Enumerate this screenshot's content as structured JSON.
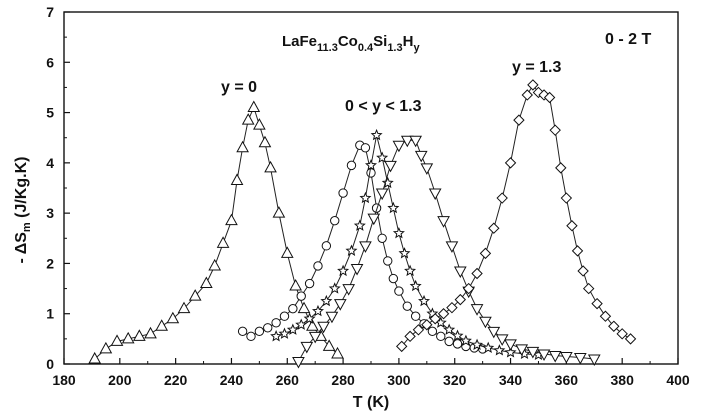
{
  "chart_data": {
    "type": "scatter",
    "title": "",
    "xlabel": "T (K)",
    "ylabel": "- ΔS_m (J/Kg.K)",
    "xlim": [
      180,
      400
    ],
    "ylim": [
      0,
      7
    ],
    "x_ticks": [
      180,
      200,
      220,
      240,
      260,
      280,
      300,
      320,
      340,
      360,
      380,
      400
    ],
    "y_ticks": [
      0,
      1,
      2,
      3,
      4,
      5,
      6,
      7
    ],
    "legend": "none",
    "grid": false,
    "annotations": {
      "formula": {
        "main": "LaFe",
        "sub1": "11.3",
        "b": "Co",
        "sub2": "0.4",
        "c": "Si",
        "sub3": "1.3",
        "d": "H",
        "sub4": "y"
      },
      "field": "0 - 2 T",
      "label_y0": "y = 0",
      "label_mid": "0 < y < 1.3",
      "label_y13": "y = 1.3"
    },
    "series": [
      {
        "marker": "triangle-up",
        "x": [
          191,
          195,
          199,
          203,
          207,
          211,
          215,
          219,
          223,
          227,
          231,
          234,
          237,
          240,
          242,
          244,
          246,
          248,
          250,
          252,
          254,
          257,
          260,
          263,
          266,
          269,
          272,
          275,
          278
        ],
        "y": [
          0.1,
          0.3,
          0.45,
          0.5,
          0.55,
          0.6,
          0.75,
          0.9,
          1.1,
          1.35,
          1.6,
          1.95,
          2.4,
          2.85,
          3.65,
          4.3,
          4.85,
          5.1,
          4.75,
          4.4,
          3.9,
          3.0,
          2.2,
          1.55,
          1.1,
          0.75,
          0.55,
          0.35,
          0.2
        ]
      },
      {
        "marker": "circle",
        "x": [
          244,
          247,
          250,
          253,
          256,
          259,
          262,
          265,
          268,
          271,
          274,
          277,
          280,
          283,
          286,
          288,
          290,
          292,
          294,
          296,
          298,
          300,
          303,
          306,
          309,
          312,
          315,
          318,
          321,
          324,
          327,
          330
        ],
        "y": [
          0.65,
          0.55,
          0.65,
          0.72,
          0.82,
          0.95,
          1.1,
          1.35,
          1.6,
          1.95,
          2.35,
          2.85,
          3.4,
          3.95,
          4.35,
          4.3,
          3.8,
          3.1,
          2.5,
          2.05,
          1.7,
          1.45,
          1.15,
          0.95,
          0.8,
          0.65,
          0.55,
          0.45,
          0.4,
          0.35,
          0.32,
          0.3
        ]
      },
      {
        "marker": "star",
        "x": [
          256,
          259,
          262,
          265,
          268,
          271,
          274,
          277,
          280,
          283,
          286,
          288,
          290,
          292,
          294,
          296,
          298,
          300,
          302,
          304,
          306,
          309,
          312,
          315,
          318,
          321,
          324,
          328,
          332,
          336,
          340,
          345,
          350
        ],
        "y": [
          0.55,
          0.6,
          0.68,
          0.78,
          0.9,
          1.05,
          1.25,
          1.5,
          1.85,
          2.25,
          2.75,
          3.3,
          3.95,
          4.55,
          4.1,
          3.6,
          3.1,
          2.6,
          2.2,
          1.85,
          1.55,
          1.25,
          1.0,
          0.82,
          0.68,
          0.56,
          0.46,
          0.38,
          0.32,
          0.27,
          0.23,
          0.2,
          0.18
        ]
      },
      {
        "marker": "triangle-down",
        "x": [
          264,
          267,
          270,
          273,
          276,
          279,
          282,
          285,
          288,
          291,
          294,
          297,
          300,
          303,
          306,
          308,
          310,
          313,
          316,
          319,
          322,
          325,
          328,
          331,
          334,
          337,
          340,
          344,
          348,
          352,
          356,
          360,
          365,
          370
        ],
        "y": [
          0.05,
          0.35,
          0.55,
          0.75,
          0.95,
          1.2,
          1.5,
          1.9,
          2.35,
          2.9,
          3.4,
          3.95,
          4.35,
          4.45,
          4.45,
          4.15,
          3.9,
          3.4,
          2.85,
          2.35,
          1.85,
          1.45,
          1.1,
          0.85,
          0.65,
          0.5,
          0.4,
          0.3,
          0.25,
          0.2,
          0.17,
          0.15,
          0.13,
          0.1
        ]
      },
      {
        "marker": "diamond",
        "x": [
          301,
          304,
          307,
          310,
          313,
          316,
          319,
          322,
          325,
          328,
          331,
          334,
          337,
          340,
          343,
          346,
          348,
          350,
          352,
          354,
          356,
          358,
          360,
          362,
          364,
          366,
          368,
          371,
          374,
          377,
          380,
          383
        ],
        "y": [
          0.35,
          0.55,
          0.68,
          0.78,
          0.9,
          1.0,
          1.12,
          1.28,
          1.5,
          1.8,
          2.2,
          2.7,
          3.3,
          4.0,
          4.85,
          5.35,
          5.55,
          5.4,
          5.35,
          5.3,
          4.65,
          3.9,
          3.3,
          2.75,
          2.25,
          1.85,
          1.5,
          1.2,
          0.95,
          0.75,
          0.6,
          0.5
        ]
      }
    ]
  }
}
